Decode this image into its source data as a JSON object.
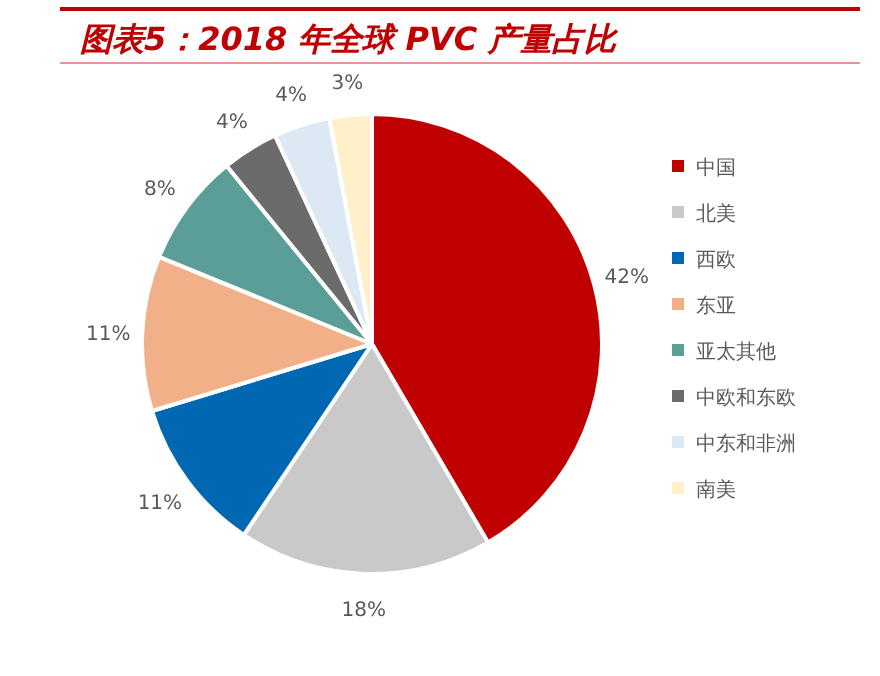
{
  "chart_data": {
    "type": "pie",
    "title": "图表5：2018 年全球 PVC 产量占比",
    "categories": [
      "中国",
      "北美",
      "西欧",
      "东亚",
      "亚太其他",
      "中欧和东欧",
      "中东和非洲",
      "南美"
    ],
    "values": [
      42,
      18,
      11,
      11,
      8,
      4,
      4,
      3
    ],
    "value_labels": [
      "42%",
      "18%",
      "11%",
      "11%",
      "8%",
      "4%",
      "4%",
      "3%"
    ],
    "colors": [
      "#c00000",
      "#c9c9c9",
      "#0068b3",
      "#f2b089",
      "#5a9e97",
      "#6b6b6b",
      "#dde8f5",
      "#fff0c9"
    ],
    "legend": "right"
  }
}
